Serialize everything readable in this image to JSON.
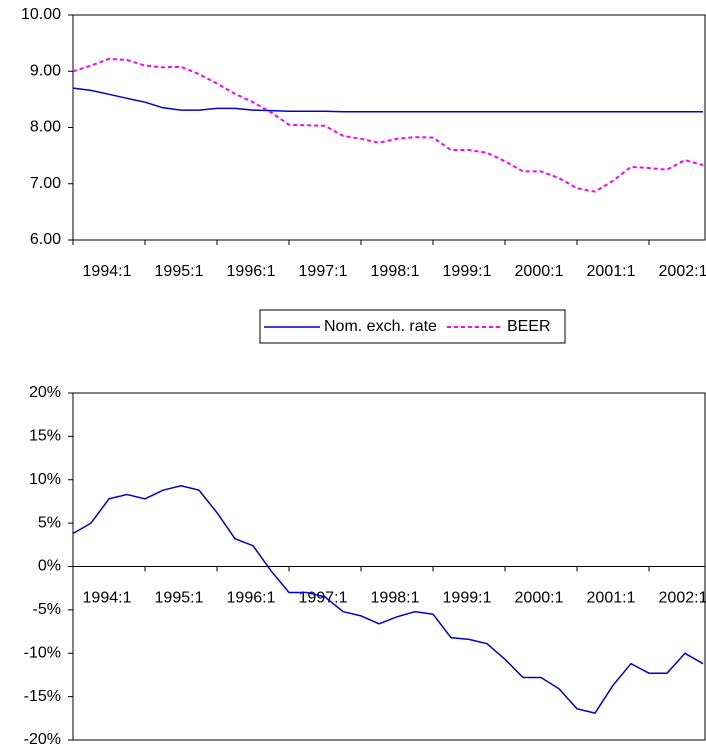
{
  "chart_data": [
    {
      "type": "line",
      "categories": [
        "1994:1",
        null,
        null,
        null,
        "1995:1",
        null,
        null,
        null,
        "1996:1",
        null,
        null,
        null,
        "1997:1",
        null,
        null,
        null,
        "1998:1",
        null,
        null,
        null,
        "1999:1",
        null,
        null,
        null,
        "2000:1",
        null,
        null,
        null,
        "2001:1",
        null,
        null,
        null,
        "2002:1",
        null,
        null,
        null
      ],
      "series": [
        {
          "name": "Nom. exch. rate",
          "color": "#0000cc",
          "dashed": false,
          "values": [
            8.7,
            8.66,
            8.59,
            8.52,
            8.45,
            8.35,
            8.31,
            8.31,
            8.34,
            8.34,
            8.31,
            8.3,
            8.29,
            8.29,
            8.29,
            8.28,
            8.28,
            8.28,
            8.28,
            8.28,
            8.28,
            8.28,
            8.28,
            8.28,
            8.28,
            8.28,
            8.28,
            8.28,
            8.28,
            8.28,
            8.28,
            8.28,
            8.28,
            8.28,
            8.28,
            8.28
          ]
        },
        {
          "name": "BEER",
          "color": "#ff00ff",
          "dashed": true,
          "values": [
            9.0,
            9.1,
            9.22,
            9.2,
            9.1,
            9.07,
            9.08,
            8.95,
            8.78,
            8.6,
            8.45,
            8.27,
            8.05,
            8.04,
            8.03,
            7.85,
            7.8,
            7.73,
            7.8,
            7.83,
            7.82,
            7.6,
            7.6,
            7.55,
            7.4,
            7.22,
            7.22,
            7.1,
            6.92,
            6.86,
            7.05,
            7.3,
            7.28,
            7.25,
            7.42,
            7.33
          ]
        }
      ],
      "ylim": [
        6,
        10
      ],
      "yticks": [
        {
          "value": 6,
          "label": "6.00"
        },
        {
          "value": 7,
          "label": "7.00"
        },
        {
          "value": 8,
          "label": "8.00"
        },
        {
          "value": 9,
          "label": "9.00"
        },
        {
          "value": 10,
          "label": "10.00"
        }
      ],
      "grid": false,
      "legend": "bottom"
    },
    {
      "type": "line",
      "categories": [
        "1994:1",
        null,
        null,
        null,
        "1995:1",
        null,
        null,
        null,
        "1996:1",
        null,
        null,
        null,
        "1997:1",
        null,
        null,
        null,
        "1998:1",
        null,
        null,
        null,
        "1999:1",
        null,
        null,
        null,
        "2000:1",
        null,
        null,
        null,
        "2001:1",
        null,
        null,
        null,
        "2002:1",
        null,
        null,
        null
      ],
      "series": [
        {
          "color": "#0000cc",
          "dashed": false,
          "values": [
            3.8,
            5.0,
            7.8,
            8.3,
            7.8,
            8.8,
            9.3,
            8.8,
            6.2,
            3.2,
            2.4,
            -0.5,
            -3.0,
            -3.0,
            -3.5,
            -5.2,
            -5.7,
            -6.6,
            -5.8,
            -5.2,
            -5.5,
            -8.2,
            -8.4,
            -8.9,
            -10.7,
            -12.8,
            -12.8,
            -14.1,
            -16.4,
            -16.9,
            -13.7,
            -11.2,
            -12.3,
            -12.3,
            -10.0,
            -11.2
          ]
        }
      ],
      "ylim": [
        -20,
        20
      ],
      "yticks": [
        {
          "value": -20,
          "label": "-20%"
        },
        {
          "value": -15,
          "label": "-15%"
        },
        {
          "value": -10,
          "label": "-10%"
        },
        {
          "value": -5,
          "label": "-5%"
        },
        {
          "value": 0,
          "label": "0%"
        },
        {
          "value": 5,
          "label": "5%"
        },
        {
          "value": 10,
          "label": "10%"
        },
        {
          "value": 15,
          "label": "15%"
        },
        {
          "value": 20,
          "label": "20%"
        }
      ],
      "grid": false
    }
  ]
}
